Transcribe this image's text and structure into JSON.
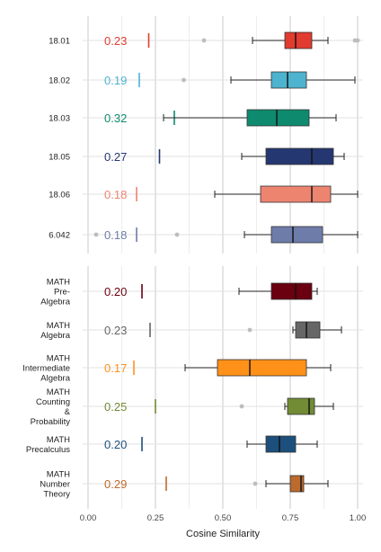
{
  "chart_data": [
    {
      "type": "boxplot",
      "title": "",
      "xlabel": "Cosine Similarity",
      "xlim": [
        0,
        1
      ],
      "x_ticks": [
        "0.00",
        "0.25",
        "0.50",
        "0.75",
        "1.00"
      ],
      "grid": true,
      "rows": [
        {
          "name": "18.01",
          "value_label": "0.23",
          "baseline": 0.225,
          "color": "#E23B30",
          "whisker_low": 0.61,
          "q1": 0.73,
          "median": 0.77,
          "q3": 0.83,
          "whisker_high": 0.89,
          "outliers": [
            0.43,
            0.99,
            1.0
          ]
        },
        {
          "name": "18.02",
          "value_label": "0.19",
          "baseline": 0.19,
          "color": "#4DB3CF",
          "whisker_low": 0.53,
          "q1": 0.68,
          "median": 0.74,
          "q3": 0.81,
          "whisker_high": 0.99,
          "outliers": [
            0.355
          ]
        },
        {
          "name": "18.03",
          "value_label": "0.32",
          "baseline": 0.32,
          "color": "#0E8A6E",
          "whisker_low": 0.28,
          "q1": 0.59,
          "median": 0.7,
          "q3": 0.82,
          "whisker_high": 0.92,
          "outliers": []
        },
        {
          "name": "18.05",
          "value_label": "0.27",
          "baseline": 0.265,
          "color": "#243771",
          "whisker_low": 0.57,
          "q1": 0.66,
          "median": 0.83,
          "q3": 0.91,
          "whisker_high": 0.95,
          "outliers": []
        },
        {
          "name": "18.06",
          "value_label": "0.18",
          "baseline": 0.18,
          "color": "#EC8470",
          "whisker_low": 0.47,
          "q1": 0.64,
          "median": 0.83,
          "q3": 0.9,
          "whisker_high": 1.0,
          "outliers": []
        },
        {
          "name": "6.042",
          "value_label": "0.18",
          "baseline": 0.18,
          "color": "#6E7CAA",
          "whisker_low": 0.58,
          "q1": 0.68,
          "median": 0.76,
          "q3": 0.87,
          "whisker_high": 1.0,
          "outliers": [
            0.03,
            0.33
          ]
        }
      ]
    },
    {
      "type": "boxplot",
      "title": "",
      "xlabel": "Cosine Similarity",
      "xlim": [
        0,
        1
      ],
      "x_ticks": [
        "0.00",
        "0.25",
        "0.50",
        "0.75",
        "1.00"
      ],
      "grid": true,
      "rows": [
        {
          "name": [
            "MATH",
            "Pre-",
            "Algebra"
          ],
          "value_label": "0.20",
          "baseline": 0.2,
          "color": "#6B0010",
          "whisker_low": 0.56,
          "q1": 0.68,
          "median": 0.77,
          "q3": 0.83,
          "whisker_high": 0.85,
          "outliers": []
        },
        {
          "name": [
            "MATH",
            "Algebra"
          ],
          "value_label": "0.23",
          "baseline": 0.23,
          "color": "#666666",
          "whisker_low": 0.76,
          "q1": 0.77,
          "median": 0.81,
          "q3": 0.86,
          "whisker_high": 0.94,
          "outliers": [
            0.6
          ]
        },
        {
          "name": [
            "MATH",
            "Intermediate",
            "Algebra"
          ],
          "value_label": "0.17",
          "baseline": 0.17,
          "color": "#FF9119",
          "whisker_low": 0.36,
          "q1": 0.48,
          "median": 0.6,
          "q3": 0.81,
          "whisker_high": 0.9,
          "outliers": []
        },
        {
          "name": [
            "MATH",
            "Counting",
            "&",
            "Probability"
          ],
          "value_label": "0.25",
          "baseline": 0.25,
          "color": "#728B35",
          "whisker_low": 0.73,
          "q1": 0.74,
          "median": 0.82,
          "q3": 0.84,
          "whisker_high": 0.91,
          "outliers": [
            0.57
          ]
        },
        {
          "name": [
            "MATH",
            "Precalculus"
          ],
          "value_label": "0.20",
          "baseline": 0.2,
          "color": "#1D4F7C",
          "whisker_low": 0.59,
          "q1": 0.66,
          "median": 0.71,
          "q3": 0.77,
          "whisker_high": 0.85,
          "outliers": []
        },
        {
          "name": [
            "MATH",
            "Number",
            "Theory"
          ],
          "value_label": "0.29",
          "baseline": 0.29,
          "color": "#BC6A2D",
          "whisker_low": 0.66,
          "q1": 0.75,
          "median": 0.79,
          "q3": 0.8,
          "whisker_high": 0.89,
          "outliers": [
            0.62
          ]
        }
      ]
    }
  ]
}
